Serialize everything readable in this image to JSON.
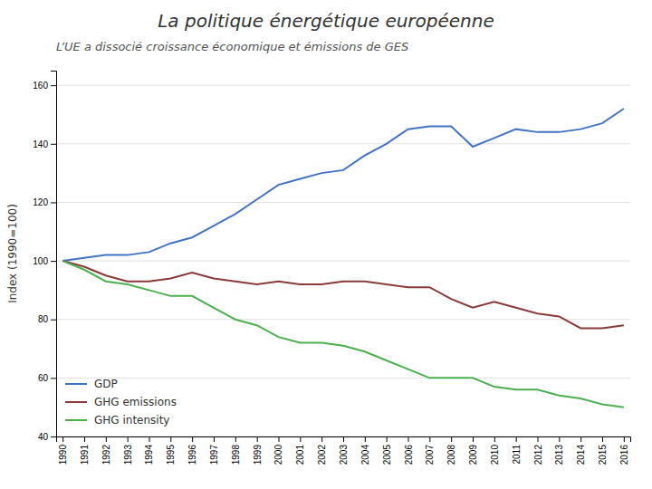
{
  "chart_data": {
    "type": "line",
    "title": "La politique énergétique européenne",
    "subtitle": "L’UE a dissocié croissance économique et émissions de GES",
    "y_label": "Index (1990=100)",
    "x": [
      1990,
      1991,
      1992,
      1993,
      1994,
      1995,
      1996,
      1997,
      1998,
      1999,
      2000,
      2001,
      2002,
      2003,
      2004,
      2005,
      2006,
      2007,
      2008,
      2009,
      2010,
      2011,
      2012,
      2013,
      2014,
      2015,
      2016
    ],
    "series": [
      {
        "name": "GDP",
        "color": "#4472C4",
        "values": [
          100,
          101,
          102,
          102,
          103,
          106,
          108,
          112,
          116,
          121,
          126,
          128,
          130,
          131,
          136,
          140,
          145,
          146,
          146,
          139,
          142,
          145,
          144,
          144,
          145,
          147,
          152
        ]
      },
      {
        "name": "GHG emissions",
        "color": "#8B3A3A",
        "values": [
          100,
          98,
          95,
          93,
          93,
          94,
          96,
          94,
          93,
          92,
          93,
          92,
          92,
          93,
          93,
          92,
          91,
          91,
          87,
          84,
          86,
          84,
          82,
          81,
          77,
          77,
          78
        ]
      },
      {
        "name": "GHG intensity",
        "color": "#4CAF50",
        "values": [
          100,
          97,
          93,
          92,
          90,
          88,
          88,
          84,
          80,
          78,
          74,
          72,
          72,
          71,
          69,
          66,
          63,
          60,
          60,
          60,
          57,
          56,
          56,
          54,
          53,
          51,
          50
        ]
      }
    ],
    "xlim": [
      1989.7,
      2016.3
    ],
    "xticks": [
      1990,
      1991,
      1992,
      1993,
      1994,
      1995,
      1996,
      1997,
      1998,
      1999,
      2000,
      2001,
      2002,
      2003,
      2004,
      2005,
      2006,
      2007,
      2008,
      2009,
      2010,
      2011,
      2012,
      2013,
      2014,
      2015,
      2016
    ],
    "ylim": [
      40,
      165
    ],
    "yticks": [
      40,
      60,
      80,
      100,
      120,
      140,
      160
    ],
    "grid": "y",
    "legend": "lower left"
  }
}
